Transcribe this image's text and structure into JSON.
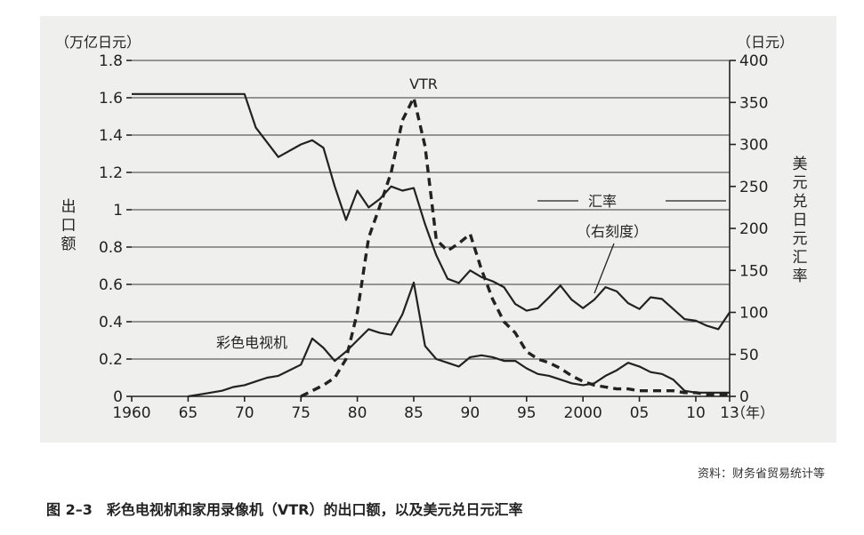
{
  "figure": {
    "caption": "图 2–3　彩色电视机和家用录像机（VTR）的出口额，以及美元兑日元汇率",
    "source": "资料：财务省贸易统计等"
  },
  "chart_data": {
    "type": "line",
    "left_unit": "（万亿日元）",
    "right_unit": "（日元）",
    "left_axis_title": "出口额",
    "right_axis_title": "美元兑日元汇率",
    "x_unit": "（年）",
    "ylim_left": [
      0,
      1.8
    ],
    "ylim_right": [
      0,
      400
    ],
    "xlim": [
      1960,
      2013
    ],
    "grid": true,
    "x_ticks": [
      {
        "value": 1960,
        "label": "1960"
      },
      {
        "value": 1965,
        "label": "65"
      },
      {
        "value": 1970,
        "label": "70"
      },
      {
        "value": 1975,
        "label": "75"
      },
      {
        "value": 1980,
        "label": "80"
      },
      {
        "value": 1985,
        "label": "85"
      },
      {
        "value": 1990,
        "label": "90"
      },
      {
        "value": 1995,
        "label": "95"
      },
      {
        "value": 2000,
        "label": "2000"
      },
      {
        "value": 2005,
        "label": "05"
      },
      {
        "value": 2010,
        "label": "10"
      },
      {
        "value": 2013,
        "label": "13"
      }
    ],
    "left_ticks": [
      {
        "value": 0,
        "label": "0"
      },
      {
        "value": 0.2,
        "label": "0.2"
      },
      {
        "value": 0.4,
        "label": "0.4"
      },
      {
        "value": 0.6,
        "label": "0.6"
      },
      {
        "value": 0.8,
        "label": "0.8"
      },
      {
        "value": 1.0,
        "label": "1"
      },
      {
        "value": 1.2,
        "label": "1.2"
      },
      {
        "value": 1.4,
        "label": "1.4"
      },
      {
        "value": 1.6,
        "label": "1.6"
      },
      {
        "value": 1.8,
        "label": "1.8"
      }
    ],
    "right_ticks": [
      {
        "value": 0,
        "label": "0"
      },
      {
        "value": 50,
        "label": "50"
      },
      {
        "value": 100,
        "label": "100"
      },
      {
        "value": 150,
        "label": "150"
      },
      {
        "value": 200,
        "label": "200"
      },
      {
        "value": 250,
        "label": "250"
      },
      {
        "value": 300,
        "label": "300"
      },
      {
        "value": 350,
        "label": "350"
      },
      {
        "value": 400,
        "label": "400"
      }
    ],
    "series": [
      {
        "name": "汇率",
        "sub_label": "（右刻度）",
        "axis": "right",
        "style": "solid",
        "color": "#222222",
        "x": [
          1960,
          1970,
          1971,
          1973,
          1975,
          1976,
          1977,
          1978,
          1979,
          1980,
          1981,
          1982,
          1983,
          1984,
          1985,
          1986,
          1987,
          1988,
          1989,
          1990,
          1991,
          1992,
          1993,
          1994,
          1995,
          1996,
          1997,
          1998,
          1999,
          2000,
          2001,
          2002,
          2003,
          2004,
          2005,
          2006,
          2007,
          2008,
          2009,
          2010,
          2011,
          2012,
          2013
        ],
        "y": [
          360,
          360,
          320,
          285,
          300,
          305,
          296,
          250,
          210,
          245,
          225,
          235,
          250,
          245,
          248,
          205,
          168,
          140,
          135,
          150,
          142,
          137,
          130,
          110,
          102,
          105,
          118,
          132,
          115,
          105,
          115,
          130,
          125,
          111,
          104,
          118,
          116,
          104,
          92,
          90,
          84,
          80,
          100
        ]
      },
      {
        "name": "VTR",
        "axis": "left",
        "style": "dashed",
        "color": "#222222",
        "x": [
          1975,
          1976,
          1977,
          1978,
          1979,
          1980,
          1981,
          1982,
          1983,
          1984,
          1985,
          1986,
          1987,
          1988,
          1989,
          1990,
          1991,
          1992,
          1993,
          1994,
          1995,
          1996,
          1997,
          1998,
          1999,
          2000,
          2001,
          2002,
          2003,
          2004,
          2005,
          2006,
          2007,
          2008,
          2009,
          2010,
          2011,
          2012,
          2013
        ],
        "y": [
          0.0,
          0.03,
          0.06,
          0.1,
          0.2,
          0.45,
          0.85,
          1.02,
          1.2,
          1.48,
          1.6,
          1.34,
          0.84,
          0.78,
          0.82,
          0.87,
          0.68,
          0.52,
          0.4,
          0.34,
          0.24,
          0.2,
          0.18,
          0.15,
          0.11,
          0.08,
          0.06,
          0.05,
          0.04,
          0.04,
          0.03,
          0.03,
          0.03,
          0.03,
          0.02,
          0.02,
          0.01,
          0.01,
          0.01
        ]
      },
      {
        "name": "彩色电视机",
        "axis": "left",
        "style": "solid",
        "color": "#222222",
        "x": [
          1965,
          1966,
          1967,
          1968,
          1969,
          1970,
          1971,
          1972,
          1973,
          1974,
          1975,
          1976,
          1977,
          1978,
          1979,
          1980,
          1981,
          1982,
          1983,
          1984,
          1985,
          1986,
          1987,
          1988,
          1989,
          1990,
          1991,
          1992,
          1993,
          1994,
          1995,
          1996,
          1997,
          1998,
          1999,
          2000,
          2001,
          2002,
          2003,
          2004,
          2005,
          2006,
          2007,
          2008,
          2009,
          2010,
          2011,
          2012,
          2013
        ],
        "y": [
          0.0,
          0.01,
          0.02,
          0.03,
          0.05,
          0.06,
          0.08,
          0.1,
          0.11,
          0.14,
          0.17,
          0.31,
          0.26,
          0.19,
          0.24,
          0.3,
          0.36,
          0.34,
          0.33,
          0.44,
          0.61,
          0.27,
          0.2,
          0.18,
          0.16,
          0.21,
          0.22,
          0.21,
          0.19,
          0.19,
          0.15,
          0.12,
          0.11,
          0.09,
          0.07,
          0.06,
          0.07,
          0.11,
          0.14,
          0.18,
          0.16,
          0.13,
          0.12,
          0.09,
          0.03,
          0.02,
          0.02,
          0.02,
          0.02
        ]
      }
    ],
    "annotations": {
      "vtr_label": "VTR",
      "color_tv_label": "彩色电视机",
      "rate_label": "汇率",
      "rate_sub_label": "（右刻度）"
    }
  }
}
